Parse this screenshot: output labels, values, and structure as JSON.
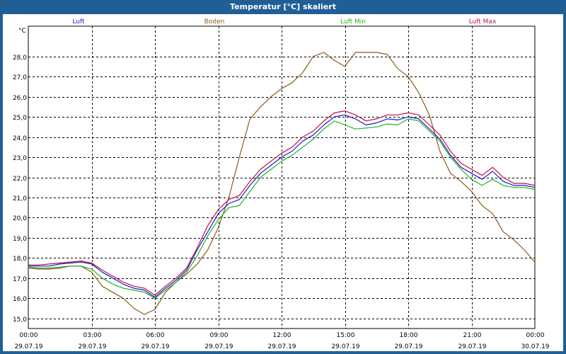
{
  "window": {
    "title": "Temperatur [°C] skaliert"
  },
  "colors": {
    "title_bar": "#1f5f96",
    "luft": "#1a1ad0",
    "boden": "#8a5a1e",
    "luft_min": "#1fb21f",
    "luft_max": "#c0103a",
    "axis": "#000000",
    "grid": "#000000"
  },
  "chart_data": {
    "type": "line",
    "title": "Temperatur [°C] skaliert",
    "ylabel": "°C",
    "xlabel": "",
    "ylim": [
      14.5,
      29.5
    ],
    "xlim_hours": [
      0,
      24
    ],
    "grid": true,
    "legend_position": "top",
    "y_ticks": [
      "15,0",
      "16,0",
      "17,0",
      "18,0",
      "19,0",
      "20,0",
      "21,0",
      "22,0",
      "23,0",
      "24,0",
      "25,0",
      "26,0",
      "27,0",
      "28,0"
    ],
    "x_ticks": [
      {
        "time": "00:00",
        "date": "29.07.19"
      },
      {
        "time": "03:00",
        "date": "29.07.19"
      },
      {
        "time": "06:00",
        "date": "29.07.19"
      },
      {
        "time": "09:00",
        "date": "29.07.19"
      },
      {
        "time": "12:00",
        "date": "29.07.19"
      },
      {
        "time": "15:00",
        "date": "29.07.19"
      },
      {
        "time": "18:00",
        "date": "29.07.19"
      },
      {
        "time": "21:00",
        "date": "29.07.19"
      },
      {
        "time": "00:00",
        "date": "30.07.19"
      }
    ],
    "x_hours": [
      0,
      0.5,
      1,
      1.5,
      2,
      2.5,
      3,
      3.5,
      4,
      4.5,
      5,
      5.5,
      6,
      6.5,
      7,
      7.5,
      8,
      8.5,
      9,
      9.5,
      10,
      10.5,
      11,
      11.5,
      12,
      12.5,
      13,
      13.5,
      14,
      14.5,
      15,
      15.5,
      16,
      16.5,
      17,
      17.5,
      18,
      18.5,
      19,
      19.5,
      20,
      20.5,
      21,
      21.5,
      22,
      22.5,
      23,
      23.5,
      24
    ],
    "series": [
      {
        "name": "Luft",
        "values": [
          17.6,
          17.6,
          17.6,
          17.7,
          17.75,
          17.8,
          17.7,
          17.3,
          17.0,
          16.7,
          16.5,
          16.4,
          16.05,
          16.5,
          16.9,
          17.4,
          18.4,
          19.3,
          20.2,
          20.7,
          20.9,
          21.6,
          22.2,
          22.6,
          23.0,
          23.3,
          23.8,
          24.1,
          24.6,
          25.0,
          25.1,
          24.9,
          24.6,
          24.7,
          24.9,
          24.85,
          25.0,
          24.9,
          24.4,
          23.9,
          23.1,
          22.5,
          22.2,
          21.9,
          22.3,
          21.8,
          21.6,
          21.6,
          21.5
        ]
      },
      {
        "name": "Boden",
        "values": [
          17.5,
          17.45,
          17.45,
          17.5,
          17.6,
          17.6,
          17.3,
          16.6,
          16.3,
          16.0,
          15.5,
          15.2,
          15.45,
          16.3,
          16.8,
          17.2,
          17.7,
          18.4,
          19.5,
          21.0,
          23.0,
          24.9,
          25.5,
          26.0,
          26.4,
          26.7,
          27.2,
          28.0,
          28.2,
          27.8,
          27.5,
          28.2,
          28.2,
          28.2,
          28.1,
          27.4,
          27.0,
          26.2,
          25.1,
          23.3,
          22.2,
          21.8,
          21.3,
          20.6,
          20.2,
          19.3,
          18.9,
          18.4,
          17.8
        ]
      },
      {
        "name": "Luft Min",
        "values": [
          17.55,
          17.5,
          17.5,
          17.55,
          17.6,
          17.6,
          17.45,
          17.0,
          16.7,
          16.5,
          16.4,
          16.3,
          16.0,
          16.4,
          16.8,
          17.3,
          18.1,
          19.1,
          19.9,
          20.5,
          20.6,
          21.3,
          22.0,
          22.4,
          22.8,
          23.1,
          23.5,
          23.9,
          24.4,
          24.8,
          24.6,
          24.4,
          24.45,
          24.5,
          24.65,
          24.6,
          24.9,
          24.8,
          24.3,
          23.8,
          23.0,
          22.4,
          21.9,
          21.6,
          21.9,
          21.6,
          21.5,
          21.5,
          21.4
        ]
      },
      {
        "name": "Luft Max",
        "values": [
          17.65,
          17.65,
          17.7,
          17.75,
          17.8,
          17.85,
          17.75,
          17.4,
          17.1,
          16.8,
          16.6,
          16.5,
          16.15,
          16.6,
          17.0,
          17.5,
          18.5,
          19.6,
          20.4,
          20.9,
          21.1,
          21.8,
          22.4,
          22.8,
          23.2,
          23.5,
          24.0,
          24.3,
          24.8,
          25.2,
          25.3,
          25.1,
          24.8,
          24.9,
          25.1,
          25.1,
          25.2,
          25.1,
          24.6,
          24.1,
          23.3,
          22.7,
          22.4,
          22.1,
          22.5,
          22.0,
          21.7,
          21.7,
          21.6
        ]
      }
    ]
  }
}
